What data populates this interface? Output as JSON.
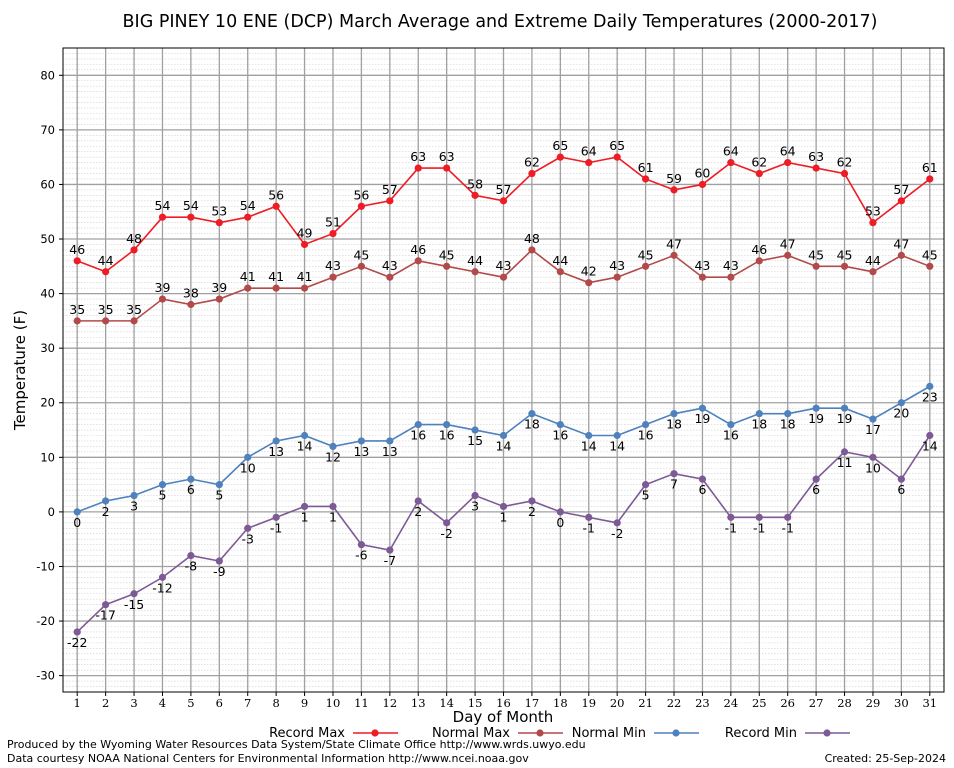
{
  "chart_data": {
    "type": "line",
    "title": "BIG PINEY 10 ENE (DCP) March Average and Extreme Daily Temperatures (2000-2017)",
    "xlabel": "Day of Month",
    "ylabel": "Temperature (F)",
    "ylim": [
      -33,
      85
    ],
    "xlim": [
      0.5,
      31.5
    ],
    "yticks": [
      -30,
      -20,
      -10,
      0,
      10,
      20,
      30,
      40,
      50,
      60,
      70,
      80
    ],
    "x": [
      1,
      2,
      3,
      4,
      5,
      6,
      7,
      8,
      9,
      10,
      11,
      12,
      13,
      14,
      15,
      16,
      17,
      18,
      19,
      20,
      21,
      22,
      23,
      24,
      25,
      26,
      27,
      28,
      29,
      30,
      31
    ],
    "grid": true,
    "legend_position": "bottom",
    "series": [
      {
        "name": "Record Max",
        "color": "#ee1c25",
        "label_pos": "above",
        "values": [
          46,
          44,
          48,
          54,
          54,
          53,
          54,
          56,
          49,
          51,
          56,
          57,
          63,
          63,
          58,
          57,
          62,
          65,
          64,
          65,
          61,
          59,
          60,
          64,
          62,
          64,
          63,
          62,
          53,
          57,
          61
        ]
      },
      {
        "name": "Normal Max",
        "color": "#b24a4a",
        "label_pos": "above",
        "values": [
          35,
          35,
          35,
          39,
          38,
          39,
          41,
          41,
          41,
          43,
          45,
          43,
          46,
          45,
          44,
          43,
          48,
          44,
          42,
          43,
          45,
          47,
          43,
          43,
          46,
          47,
          45,
          45,
          44,
          47,
          45
        ]
      },
      {
        "name": "Normal Min",
        "color": "#4f81bd",
        "label_pos": "below",
        "values": [
          0,
          2,
          3,
          5,
          6,
          5,
          10,
          13,
          14,
          12,
          13,
          13,
          16,
          16,
          15,
          14,
          18,
          16,
          14,
          14,
          16,
          18,
          19,
          16,
          18,
          18,
          19,
          19,
          17,
          20,
          23
        ]
      },
      {
        "name": "Record Min",
        "color": "#7d5a96",
        "label_pos": "below",
        "values": [
          -22,
          -17,
          -15,
          -12,
          -8,
          -9,
          -3,
          -1,
          1,
          1,
          -6,
          -7,
          2,
          -2,
          3,
          1,
          2,
          0,
          -1,
          -2,
          5,
          7,
          6,
          -1,
          -1,
          -1,
          6,
          11,
          10,
          6,
          14
        ]
      }
    ]
  },
  "footer": {
    "produced_by": "Produced by the Wyoming Water Resources Data System/State Climate Office http://www.wrds.uwyo.edu",
    "data_courtesy": "Data courtesy NOAA National Centers for Environmental Information http://www.ncei.noaa.gov",
    "created": "Created:  25-Sep-2024"
  }
}
